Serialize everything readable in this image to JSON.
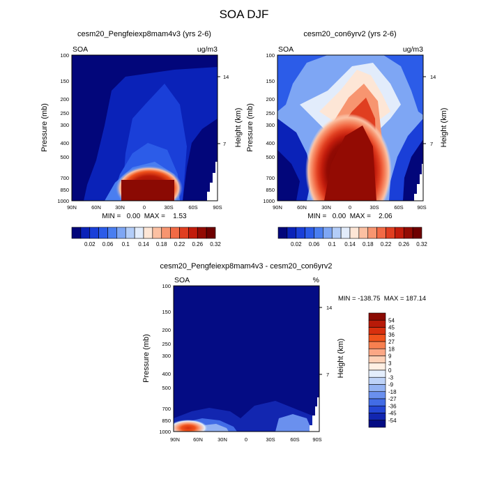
{
  "figure": {
    "title": "SOA DJF"
  },
  "chart_data": [
    {
      "type": "heatmap",
      "title": "cesm20_Pengfeiexp8mam4v3 (yrs 2-6)",
      "left_label": "SOA",
      "units": "ug/m3",
      "ylabel": "Pressure (mb)",
      "ylabel_right": "Height (km)",
      "x_ticks": [
        "90N",
        "60N",
        "30N",
        "0",
        "30S",
        "60S",
        "90S"
      ],
      "y_ticks": [
        "100",
        "150",
        "200",
        "250",
        "300",
        "400",
        "500",
        "700",
        "850",
        "1000"
      ],
      "right_ticks": [
        "14",
        "7"
      ],
      "xlim": [
        90,
        -90
      ],
      "ylim_log_pressure": [
        1000,
        100
      ],
      "stats": "MIN =   0.00  MAX =    1.53",
      "colorbar_orientation": "horizontal",
      "colorbar_labels": [
        "0.02",
        "0.06",
        "0.1",
        "0.14",
        "0.18",
        "0.22",
        "0.26",
        "0.32"
      ],
      "colorbar_colors": [
        "#02067a",
        "#0a22b8",
        "#1a3fd8",
        "#2c5ce8",
        "#4a7ef0",
        "#7ea6f4",
        "#b3cdf8",
        "#e2ecfb",
        "#fde6d6",
        "#fbc0a2",
        "#f79570",
        "#f26a45",
        "#e03e20",
        "#c21c0c",
        "#930b03",
        "#6e0000"
      ],
      "peak_value": 1.53,
      "peak_location": {
        "lat": -15,
        "pressure_mb": 900
      }
    },
    {
      "type": "heatmap",
      "title": "cesm20_con6yrv2 (yrs 2-6)",
      "left_label": "SOA",
      "units": "ug/m3",
      "ylabel": "Pressure (mb)",
      "ylabel_right": "Height (km)",
      "x_ticks": [
        "90N",
        "60N",
        "30N",
        "0",
        "30S",
        "60S",
        "90S"
      ],
      "y_ticks": [
        "100",
        "150",
        "200",
        "250",
        "300",
        "400",
        "500",
        "700",
        "850",
        "1000"
      ],
      "right_ticks": [
        "14",
        "7"
      ],
      "xlim": [
        90,
        -90
      ],
      "ylim_log_pressure": [
        1000,
        100
      ],
      "stats": "MIN =   0.00  MAX =    2.06",
      "colorbar_orientation": "horizontal",
      "colorbar_labels": [
        "0.02",
        "0.06",
        "0.1",
        "0.14",
        "0.18",
        "0.22",
        "0.26",
        "0.32"
      ],
      "colorbar_colors": [
        "#02067a",
        "#0a22b8",
        "#1a3fd8",
        "#2c5ce8",
        "#4a7ef0",
        "#7ea6f4",
        "#b3cdf8",
        "#e2ecfb",
        "#fde6d6",
        "#fbc0a2",
        "#f79570",
        "#f26a45",
        "#e03e20",
        "#c21c0c",
        "#930b03",
        "#6e0000"
      ],
      "peak_value": 2.06,
      "peak_location": {
        "lat": -10,
        "pressure_mb": 800
      }
    },
    {
      "type": "heatmap",
      "title": "cesm20_Pengfeiexp8mam4v3 - cesm20_con6yrv2",
      "left_label": "SOA",
      "units": "%",
      "ylabel": "Pressure (mb)",
      "ylabel_right": "Height (km)",
      "x_ticks": [
        "90N",
        "60N",
        "30N",
        "0",
        "30S",
        "60S",
        "90S"
      ],
      "y_ticks": [
        "100",
        "150",
        "200",
        "250",
        "300",
        "400",
        "500",
        "700",
        "850",
        "1000"
      ],
      "right_ticks": [
        "14",
        "7"
      ],
      "xlim": [
        90,
        -90
      ],
      "ylim_log_pressure": [
        1000,
        100
      ],
      "stats": "MIN = -138.75  MAX = 187.14",
      "colorbar_orientation": "vertical",
      "colorbar_labels": [
        "54",
        "45",
        "36",
        "27",
        "18",
        "9",
        "3",
        "0",
        "-3",
        "-9",
        "-18",
        "-27",
        "-36",
        "-45",
        "-54"
      ],
      "colorbar_colors": [
        "#8b0a03",
        "#b81a08",
        "#d8300e",
        "#f0531c",
        "#f78050",
        "#fba785",
        "#fdd0b6",
        "#fff0e4",
        "#e4eefc",
        "#bed3f8",
        "#94b3f3",
        "#6a90ee",
        "#426ce6",
        "#2446d4",
        "#1226b0",
        "#040c84"
      ],
      "peak_value": 187.14,
      "peak_location": {
        "lat": 75,
        "pressure_mb": 950
      }
    }
  ]
}
